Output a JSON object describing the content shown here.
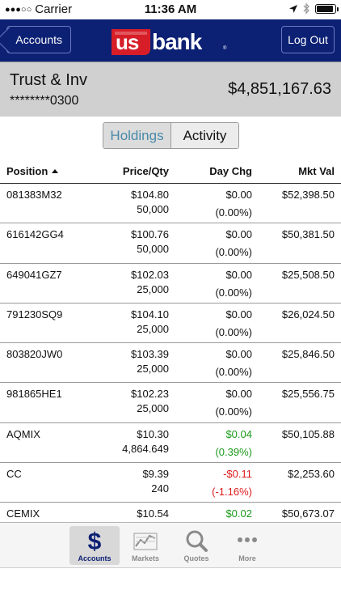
{
  "status_bar": {
    "signal_dots": "●●●○○",
    "carrier": "Carrier",
    "time": "11:36 AM",
    "location_icon": "location-arrow-icon",
    "bluetooth_icon": "bluetooth-icon",
    "battery_icon": "battery-icon"
  },
  "nav": {
    "back_label": "Accounts",
    "logo_text": "usbank",
    "logout_label": "Log Out"
  },
  "account": {
    "name": "Trust & Inv",
    "number": "********0300",
    "balance": "$4,851,167.63"
  },
  "segments": {
    "holdings": "Holdings",
    "activity": "Activity",
    "selected": "Holdings"
  },
  "table": {
    "headers": {
      "position": "Position",
      "price_qty": "Price/Qty",
      "day_chg": "Day Chg",
      "mkt_val": "Mkt Val"
    },
    "rows": [
      {
        "symbol": "081383M32",
        "price": "$104.80",
        "qty": "50,000",
        "day_chg": "$0.00",
        "day_pct": "(0.00%)",
        "mkt_val": "$52,398.50",
        "trend": "flat"
      },
      {
        "symbol": "616142GG4",
        "price": "$100.76",
        "qty": "50,000",
        "day_chg": "$0.00",
        "day_pct": "(0.00%)",
        "mkt_val": "$50,381.50",
        "trend": "flat"
      },
      {
        "symbol": "649041GZ7",
        "price": "$102.03",
        "qty": "25,000",
        "day_chg": "$0.00",
        "day_pct": "(0.00%)",
        "mkt_val": "$25,508.50",
        "trend": "flat"
      },
      {
        "symbol": "791230SQ9",
        "price": "$104.10",
        "qty": "25,000",
        "day_chg": "$0.00",
        "day_pct": "(0.00%)",
        "mkt_val": "$26,024.50",
        "trend": "flat"
      },
      {
        "symbol": "803820JW0",
        "price": "$103.39",
        "qty": "25,000",
        "day_chg": "$0.00",
        "day_pct": "(0.00%)",
        "mkt_val": "$25,846.50",
        "trend": "flat"
      },
      {
        "symbol": "981865HE1",
        "price": "$102.23",
        "qty": "25,000",
        "day_chg": "$0.00",
        "day_pct": "(0.00%)",
        "mkt_val": "$25,556.75",
        "trend": "flat"
      },
      {
        "symbol": "AQMIX",
        "price": "$10.30",
        "qty": "4,864.649",
        "day_chg": "$0.04",
        "day_pct": "(0.39%)",
        "mkt_val": "$50,105.88",
        "trend": "up"
      },
      {
        "symbol": "CC",
        "price": "$9.39",
        "qty": "240",
        "day_chg": "-$0.11",
        "day_pct": "(-1.16%)",
        "mkt_val": "$2,253.60",
        "trend": "down"
      },
      {
        "symbol": "CEMIX",
        "price": "$10.54",
        "qty": "",
        "day_chg": "$0.02",
        "day_pct": "",
        "mkt_val": "$50,673.07",
        "trend": "up"
      }
    ]
  },
  "tabs": [
    {
      "label": "Accounts",
      "icon": "dollar-icon",
      "active": true
    },
    {
      "label": "Markets",
      "icon": "markets-chart-icon",
      "active": false
    },
    {
      "label": "Quotes",
      "icon": "magnifier-icon",
      "active": false
    },
    {
      "label": "More",
      "icon": "more-dots-icon",
      "active": false
    }
  ],
  "colors": {
    "brand_navy": "#0c2074",
    "brand_red": "#d71e28",
    "gain": "#1a9a1a",
    "loss": "#e01a1a",
    "segment_active_text": "#4a8aa8"
  }
}
